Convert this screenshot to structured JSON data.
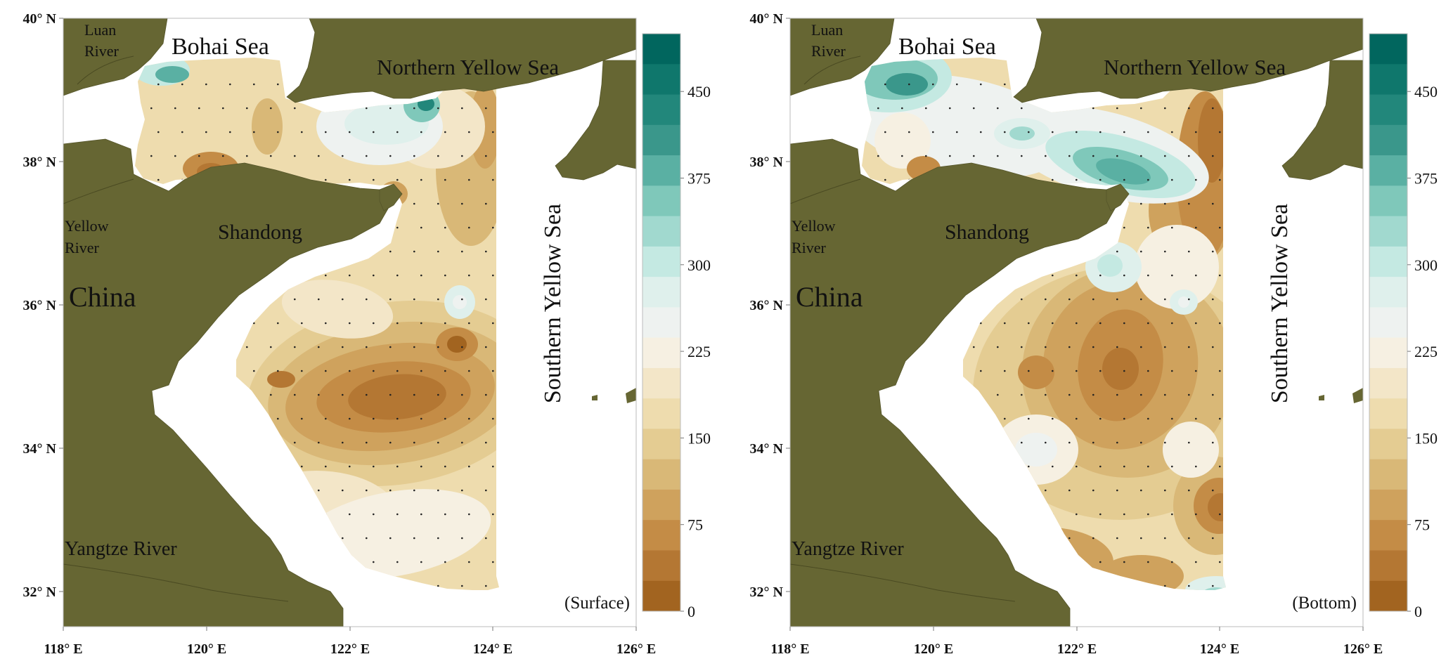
{
  "maps": [
    {
      "id": "surface",
      "panel_label": "(Surface)",
      "variant": "surface"
    },
    {
      "id": "bottom",
      "panel_label": "(Bottom)",
      "variant": "bottom"
    }
  ],
  "axes": {
    "lat_ticks": [
      "40° N",
      "38° N",
      "36° N",
      "34° N",
      "32° N"
    ],
    "lon_ticks": [
      "118° E",
      "120° E",
      "122° E",
      "124° E",
      "126° E"
    ]
  },
  "place_labels": {
    "luan_river_1": "Luan",
    "luan_river_2": "River",
    "bohai_sea": "Bohai Sea",
    "northern_yellow_sea": "Northern Yellow Sea",
    "yellow_river_1": "Yellow",
    "yellow_river_2": "River",
    "shandong": "Shandong",
    "china": "China",
    "southern_yellow_sea": "Southern Yellow Sea",
    "yangtze_river": "Yangtze River"
  },
  "colorbar": {
    "tick_labels": [
      "450",
      "375",
      "300",
      "225",
      "150",
      "75",
      "0"
    ],
    "colors_top_to_bottom": [
      "#01665e",
      "#0f776c",
      "#22877b",
      "#3a978b",
      "#5ab0a3",
      "#7fc8ba",
      "#a1d9cf",
      "#c4e9e2",
      "#dff0ec",
      "#eef2f0",
      "#f6f0e2",
      "#f3e6c8",
      "#eedcae",
      "#e4cc92",
      "#d9b877",
      "#cfa25d",
      "#c48c46",
      "#b47733",
      "#a26420"
    ]
  },
  "colors": {
    "land": "#666633",
    "sea_blank": "#ffffff",
    "frame": "#bbbbbb"
  }
}
